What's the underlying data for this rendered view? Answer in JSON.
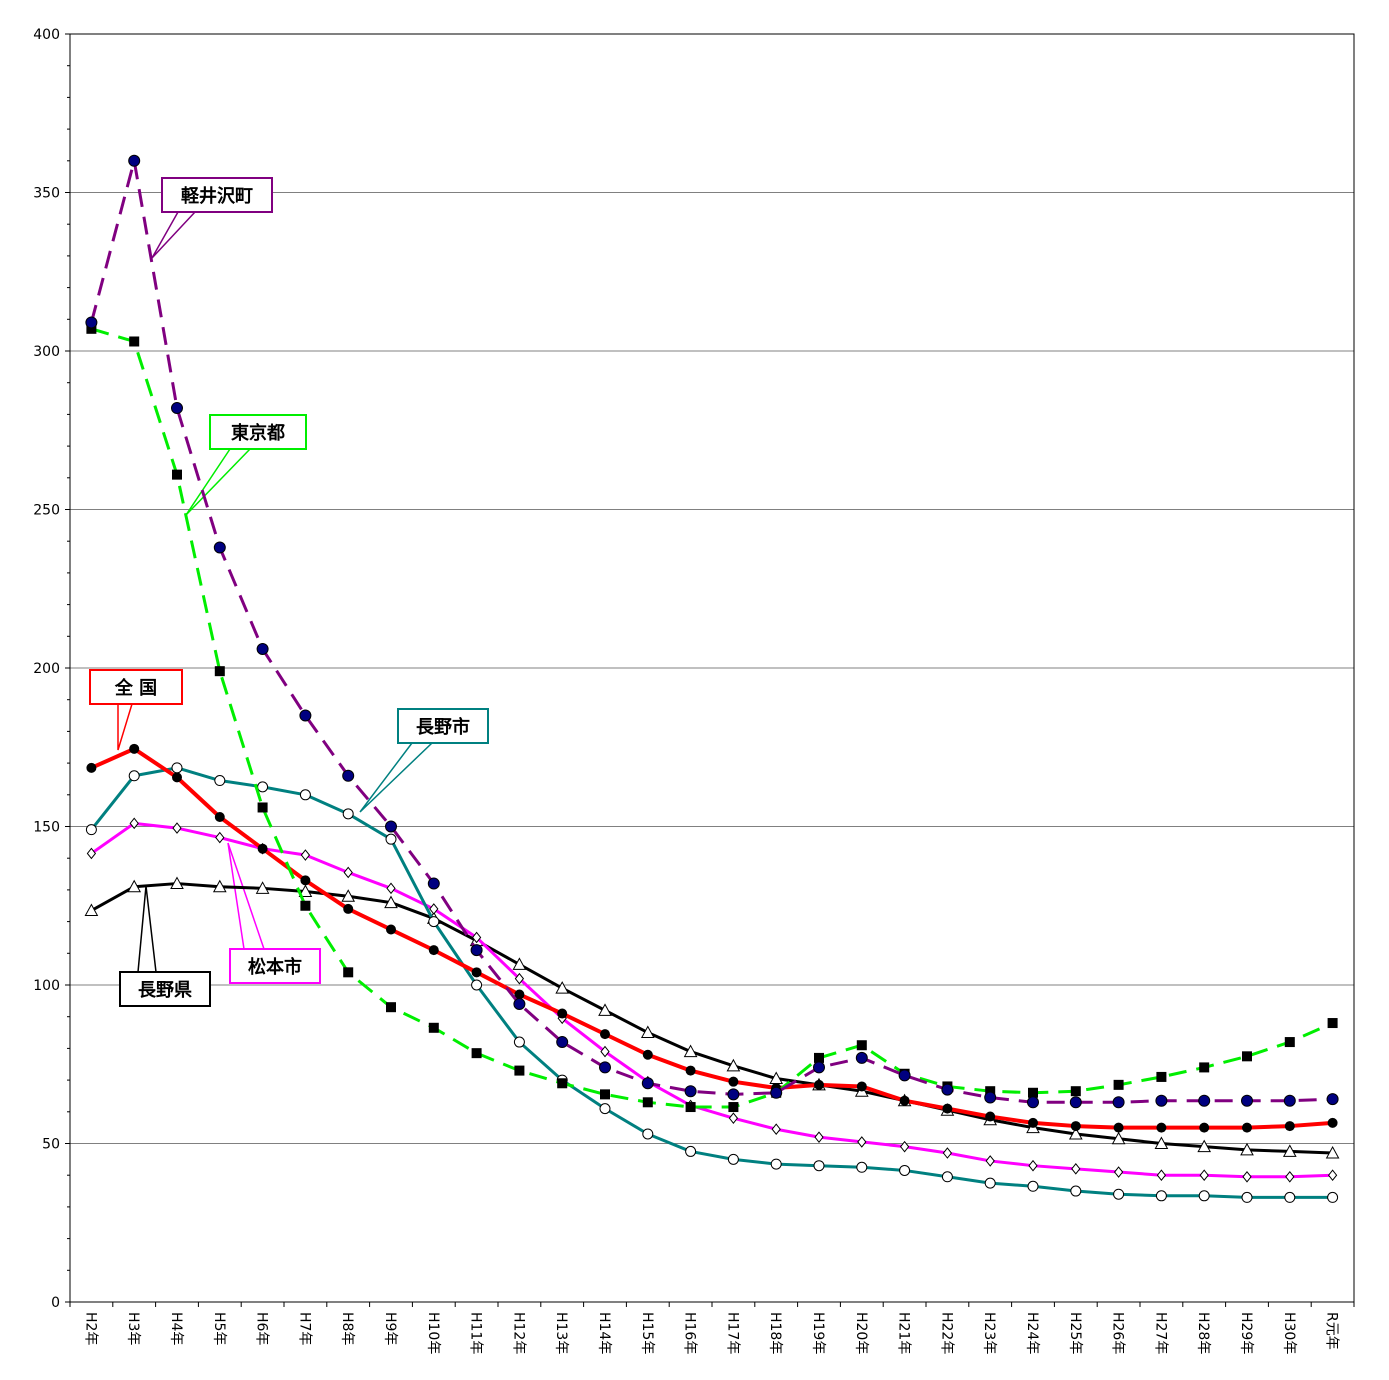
{
  "chart_data": {
    "type": "line",
    "title": "",
    "xlabel": "",
    "ylabel": "",
    "ylim": [
      0,
      400
    ],
    "yticks": [
      0,
      50,
      100,
      150,
      200,
      250,
      300,
      350,
      400
    ],
    "grid": true,
    "categories": [
      "H2年",
      "H3年",
      "H4年",
      "H5年",
      "H6年",
      "H7年",
      "H8年",
      "H9年",
      "H10年",
      "H11年",
      "H12年",
      "H13年",
      "H14年",
      "H15年",
      "H16年",
      "H17年",
      "H18年",
      "H19年",
      "H20年",
      "H21年",
      "H22年",
      "H23年",
      "H24年",
      "H25年",
      "H26年",
      "H27年",
      "H28年",
      "H29年",
      "H30年",
      "R元年"
    ],
    "series": [
      {
        "name": "軽井沢町",
        "color": "#800080",
        "line_style": "dashed",
        "marker": "circle-navy",
        "values": [
          309,
          360,
          282,
          238,
          206,
          185,
          166,
          150,
          132,
          111,
          94,
          82,
          74,
          69,
          66.5,
          65.5,
          66,
          74,
          77,
          71.5,
          67,
          64.5,
          63,
          63,
          63,
          63.5,
          63.5,
          63.5,
          63.5,
          64
        ]
      },
      {
        "name": "東京都",
        "color": "#00ee00",
        "line_style": "dashed",
        "marker": "square-black",
        "values": [
          307,
          303,
          261,
          199,
          156,
          125,
          104,
          93,
          86.5,
          78.5,
          73,
          69,
          65.5,
          63,
          61.5,
          61.5,
          66,
          77,
          81,
          72,
          68,
          66.5,
          66,
          66.5,
          68.5,
          71,
          74,
          77.5,
          82,
          88
        ]
      },
      {
        "name": "全 国",
        "color": "#ff0000",
        "line_style": "solid",
        "marker": "circle-black",
        "values": [
          168.5,
          174.5,
          165.5,
          153,
          143,
          133,
          124,
          117.5,
          111,
          104,
          97,
          91,
          84.5,
          78,
          73,
          69.5,
          67.5,
          68.5,
          68,
          63.5,
          61,
          58.5,
          56.5,
          55.5,
          55,
          55,
          55,
          55,
          55.5,
          56.5
        ]
      },
      {
        "name": "長野市",
        "color": "#008080",
        "line_style": "solid",
        "marker": "circle-white",
        "values": [
          149,
          166,
          168.5,
          164.5,
          162.5,
          160,
          154,
          146,
          120,
          100,
          82,
          70,
          61,
          53,
          47.5,
          45,
          43.5,
          43,
          42.5,
          41.5,
          39.5,
          37.5,
          36.5,
          35,
          34,
          33.5,
          33.5,
          33,
          33,
          33
        ]
      },
      {
        "name": "松本市",
        "color": "#ff00ff",
        "line_style": "solid",
        "marker": "diamond-white",
        "values": [
          141.5,
          151,
          149.5,
          146.5,
          143,
          141,
          135.5,
          130.5,
          124,
          115,
          102,
          89.5,
          79,
          69.5,
          62,
          58,
          54.5,
          52,
          50.5,
          49,
          47,
          44.5,
          43,
          42,
          41,
          40,
          40,
          39.5,
          39.5,
          40
        ]
      },
      {
        "name": "長野県",
        "color": "#000000",
        "line_style": "solid",
        "marker": "triangle-white",
        "values": [
          123.5,
          131,
          132,
          131,
          130.5,
          129.5,
          128,
          126,
          121,
          114,
          106.5,
          99,
          92,
          85,
          79,
          74.5,
          70.5,
          68.5,
          66.5,
          63.5,
          60.5,
          57.5,
          55,
          53,
          51.5,
          50,
          49,
          48,
          47.5,
          47
        ]
      }
    ]
  }
}
